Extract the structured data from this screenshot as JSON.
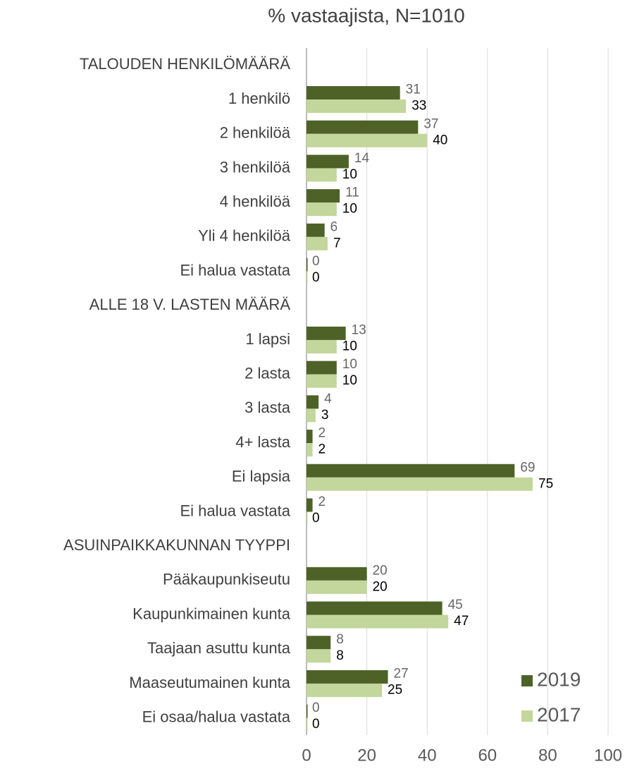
{
  "chart_data": {
    "type": "bar",
    "orientation": "horizontal",
    "title": "% vastaajista, N=1010",
    "categories": [
      "TALOUDEN HENKILÖMÄÄRÄ",
      "1 henkilö",
      "2 henkilöä",
      "3 henkilöä",
      "4 henkilöä",
      "Yli 4 henkilöä",
      "Ei halua vastata",
      "ALLE 18 V. LASTEN MÄÄRÄ",
      "1 lapsi",
      "2 lasta",
      "3 lasta",
      "4+ lasta",
      "Ei lapsia",
      "Ei halua vastata",
      "ASUINPAIKKAKUNNAN TYYPPI",
      "Pääkaupunkiseutu",
      "Kaupunkimainen kunta",
      "Taajaan asuttu kunta",
      "Maaseutumainen kunta",
      "Ei osaa/halua vastata"
    ],
    "series": [
      {
        "name": "2019",
        "color": "#4e6228",
        "label_color": "#666666",
        "values": [
          null,
          31,
          37,
          14,
          11,
          6,
          0,
          null,
          13,
          10,
          4,
          2,
          69,
          2,
          null,
          20,
          45,
          8,
          27,
          0
        ]
      },
      {
        "name": "2017",
        "color": "#c3d69b",
        "label_color": "#000000",
        "values": [
          null,
          33,
          40,
          10,
          10,
          7,
          0,
          null,
          10,
          10,
          3,
          2,
          75,
          0,
          null,
          20,
          47,
          8,
          25,
          0
        ]
      }
    ],
    "xlim": [
      0,
      100
    ],
    "xticks": [
      0,
      20,
      40,
      60,
      80,
      100
    ],
    "grid": true,
    "legend": "lower right"
  }
}
